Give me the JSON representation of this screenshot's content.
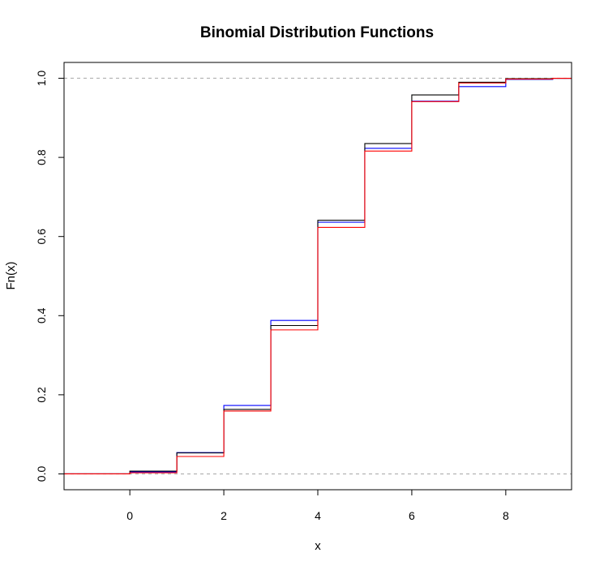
{
  "chart_data": {
    "type": "line",
    "step": true,
    "title": "Binomial Distribution Functions",
    "xlabel": "x",
    "ylabel": "Fn(x)",
    "xlim": [
      -1.4,
      9.4
    ],
    "ylim": [
      -0.04,
      1.04
    ],
    "xticks": [
      "0",
      "2",
      "4",
      "6",
      "8"
    ],
    "yticks": [
      "0.0",
      "0.2",
      "0.4",
      "0.6",
      "0.8",
      "1.0"
    ],
    "reference_lines": [
      0,
      1
    ],
    "reference_line_color": "#b3b3b3",
    "series": [
      {
        "color": "#0000ff",
        "x": [
          0,
          1,
          2,
          3,
          4,
          5,
          6,
          7,
          8,
          9
        ],
        "y": [
          0.005,
          0.054,
          0.173,
          0.388,
          0.636,
          0.823,
          0.942,
          0.979,
          0.997,
          1.0
        ]
      },
      {
        "color": "#000000",
        "x": [
          0,
          1,
          2,
          3,
          4,
          5,
          6,
          7,
          8,
          9
        ],
        "y": [
          0.007,
          0.053,
          0.163,
          0.375,
          0.641,
          0.835,
          0.958,
          0.99,
          0.999,
          1.0
        ]
      },
      {
        "color": "#ff0000",
        "x": [
          0,
          1,
          2,
          3,
          4,
          5,
          6,
          7,
          8,
          9
        ],
        "y": [
          0.003,
          0.044,
          0.159,
          0.364,
          0.623,
          0.816,
          0.941,
          0.988,
          0.998,
          1.0
        ]
      }
    ]
  }
}
